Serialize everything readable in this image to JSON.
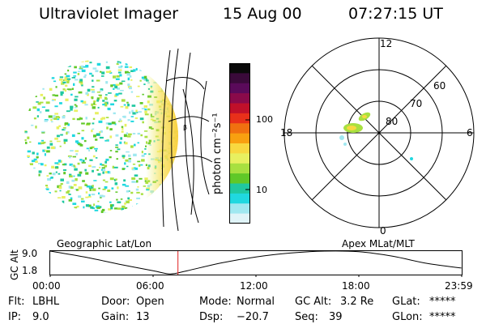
{
  "header": {
    "instrument": "Ultraviolet Imager",
    "date": "15 Aug 00",
    "time": "07:27:15 UT"
  },
  "colorbar": {
    "unit_label": "photon cm⁻²s⁻¹",
    "ticks": [
      "100",
      "10"
    ],
    "colors": [
      "#0a0a0a",
      "#3a0a3a",
      "#5a0a5a",
      "#8a0a4a",
      "#c0102a",
      "#e8301a",
      "#f07010",
      "#f8a010",
      "#f8d840",
      "#e8f060",
      "#a8e040",
      "#60c828",
      "#20c8a0",
      "#20d8e0",
      "#a0e8f0",
      "#e0f4f8"
    ]
  },
  "polar": {
    "lat_labels": [
      "80",
      "70",
      "60"
    ],
    "mlt_labels": [
      "12",
      "18",
      "6",
      "0"
    ]
  },
  "plot": {
    "left_title": "Geographic Lat/Lon",
    "right_title": "Apex MLat/MLT",
    "ylabel": "GC Alt",
    "yticks": [
      "9.0",
      "1.8"
    ],
    "xticks": [
      "00:00",
      "06:00",
      "12:00",
      "18:00",
      "23:59"
    ],
    "current_time_marker_color": "#e02020"
  },
  "chart_data": {
    "type": "line",
    "title": "",
    "xlabel": "",
    "ylabel": "GC Alt",
    "ylim": [
      1.8,
      9.0
    ],
    "x": [
      0,
      2,
      4,
      6,
      7,
      8,
      10,
      12,
      14,
      16,
      18,
      20,
      22,
      23.98
    ],
    "series": [
      {
        "values": [
          9.0,
          7.2,
          5.0,
          3.0,
          2.0,
          3.0,
          5.4,
          7.2,
          8.4,
          9.0,
          8.8,
          7.4,
          5.2,
          3.8
        ]
      }
    ],
    "marker_time": 7.45
  },
  "status": {
    "row1": [
      {
        "label": "Flt:",
        "value": "LBHL"
      },
      {
        "label": "Door:",
        "value": "Open"
      },
      {
        "label": "Mode:",
        "value": "Normal"
      },
      {
        "label": "GC Alt:",
        "value": "3.2 Re"
      },
      {
        "label": "GLat:",
        "value": "*****"
      }
    ],
    "row2": [
      {
        "label": "IP:",
        "value": "9.0"
      },
      {
        "label": "Gain:",
        "value": "13"
      },
      {
        "label": "Dsp:",
        "value": "−20.7"
      },
      {
        "label": "Seq:",
        "value": "39"
      },
      {
        "label": "GLon:",
        "value": "*****"
      }
    ]
  }
}
